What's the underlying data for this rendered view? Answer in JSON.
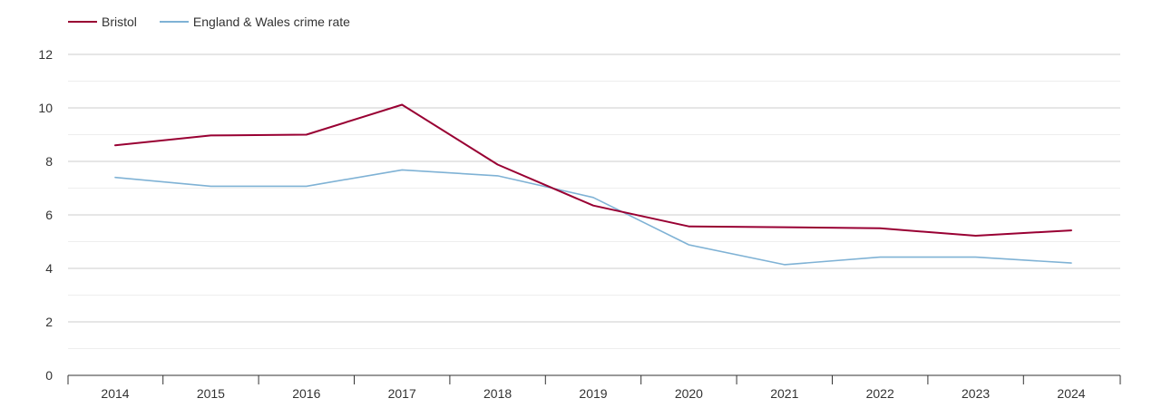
{
  "chart_data": {
    "type": "line",
    "title": "",
    "xlabel": "",
    "ylabel": "",
    "categories": [
      "2014",
      "2015",
      "2016",
      "2017",
      "2018",
      "2019",
      "2020",
      "2021",
      "2022",
      "2023",
      "2024"
    ],
    "ylim": [
      0,
      12
    ],
    "yticks": [
      0,
      2,
      4,
      6,
      8,
      10,
      12
    ],
    "grid": true,
    "legend_position": "top-left",
    "series": [
      {
        "name": "Bristol",
        "color": "#990033",
        "values": [
          8.6,
          8.97,
          9.0,
          10.12,
          7.88,
          6.35,
          5.57,
          5.54,
          5.5,
          5.22,
          5.42
        ]
      },
      {
        "name": "England & Wales crime rate",
        "color": "#7fb2d5",
        "values": [
          7.4,
          7.07,
          7.07,
          7.68,
          7.46,
          6.65,
          4.88,
          4.14,
          4.42,
          4.42,
          4.2
        ]
      }
    ]
  }
}
